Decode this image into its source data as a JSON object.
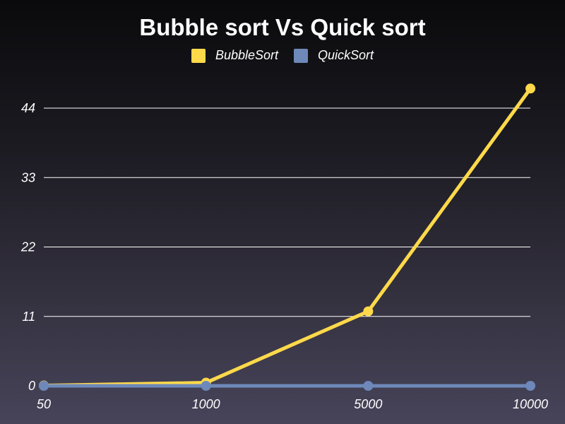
{
  "chart_data": {
    "type": "line",
    "title": "Bubble sort Vs Quick sort",
    "xlabel": "",
    "ylabel": "",
    "categories": [
      "50",
      "1000",
      "5000",
      "10000"
    ],
    "ylim": [
      0,
      47
    ],
    "yticks": [
      0,
      11,
      22,
      33,
      44
    ],
    "grid": true,
    "legend_position": "top-center",
    "series": [
      {
        "name": "BubbleSort",
        "color": "#ffd94a",
        "values": [
          0.05,
          0.5,
          11.8,
          47.1
        ]
      },
      {
        "name": "QuickSort",
        "color": "#6e88ba",
        "values": [
          0,
          0,
          0,
          0
        ]
      }
    ]
  }
}
